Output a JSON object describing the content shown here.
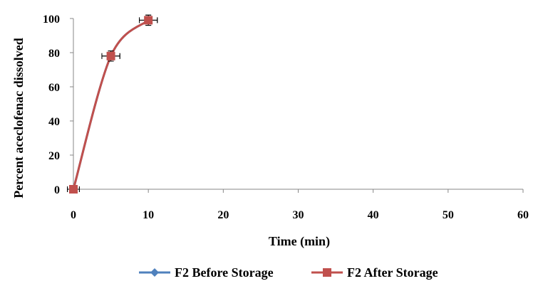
{
  "chart_data": {
    "type": "line",
    "title": "",
    "xlabel": "Time (min)",
    "ylabel": "Percent aceclofenac dissolved",
    "xlim": [
      0,
      60
    ],
    "ylim": [
      0,
      100
    ],
    "xticks": [
      0,
      10,
      20,
      30,
      40,
      50,
      60
    ],
    "yticks": [
      0,
      20,
      40,
      60,
      80,
      100
    ],
    "grid": false,
    "legend_position": "bottom",
    "series": [
      {
        "name": "F2 Before Storage",
        "color": "#4F81BD",
        "marker": "diamond",
        "x": [
          0,
          5,
          10
        ],
        "y": [
          0,
          78,
          99
        ],
        "x_error": [
          0.8,
          1.2,
          1.2
        ],
        "y_error": [
          0,
          3,
          3
        ]
      },
      {
        "name": "F2 After Storage",
        "color": "#C0504D",
        "marker": "square",
        "x": [
          0,
          5,
          10
        ],
        "y": [
          0,
          78,
          99
        ],
        "x_error": [
          0.8,
          1.2,
          1.2
        ],
        "y_error": [
          0,
          3,
          3
        ]
      }
    ]
  }
}
